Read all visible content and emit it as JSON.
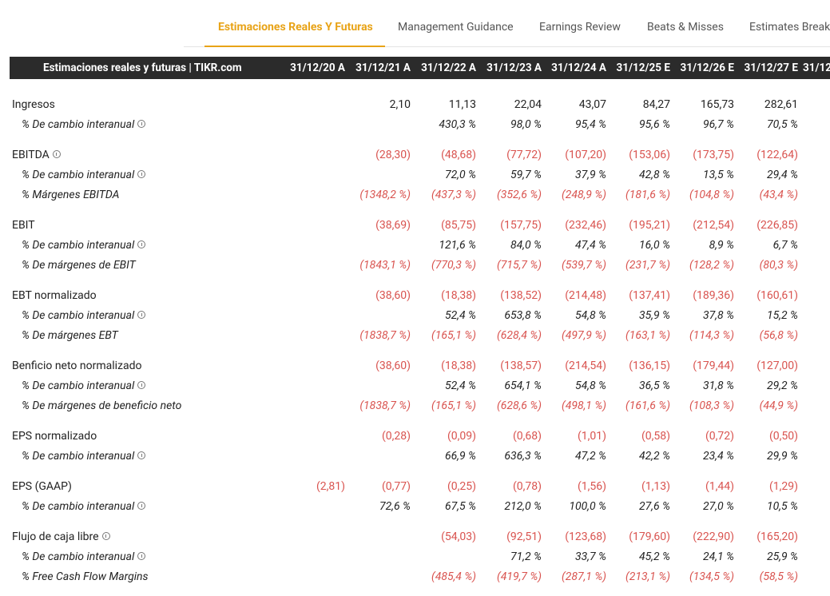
{
  "tabs": [
    "Estimaciones Reales Y Futuras",
    "Management Guidance",
    "Earnings Review",
    "Beats & Misses",
    "Estimates Break"
  ],
  "table": {
    "title": "Estimaciones reales y futuras | TIKR.com",
    "columns": [
      "31/12/20 A",
      "31/12/21 A",
      "31/12/22 A",
      "31/12/23 A",
      "31/12/24 A",
      "31/12/25 E",
      "31/12/26 E",
      "31/12/27 E",
      "31/12/"
    ],
    "groups": [
      {
        "rows": [
          {
            "label": "Ingresos",
            "cells": [
              null,
              "2,10",
              "11,13",
              "22,04",
              "43,07",
              "84,27",
              "165,73",
              "282,61"
            ]
          },
          {
            "label": "% De cambio interanual",
            "sub": true,
            "info": true,
            "cells": [
              null,
              null,
              "430,3 %",
              "98,0 %",
              "95,4 %",
              "95,6 %",
              "96,7 %",
              "70,5 %"
            ]
          }
        ]
      },
      {
        "rows": [
          {
            "label": "EBITDA",
            "info": true,
            "cells": [
              null,
              "(28,30)",
              "(48,68)",
              "(77,72)",
              "(107,20)",
              "(153,06)",
              "(173,75)",
              "(122,64)"
            ]
          },
          {
            "label": "% De cambio interanual",
            "sub": true,
            "info": true,
            "cells": [
              null,
              null,
              "72,0 %",
              "59,7 %",
              "37,9 %",
              "42,8 %",
              "13,5 %",
              "29,4 %"
            ]
          },
          {
            "label": "% Márgenes EBITDA",
            "sub": true,
            "cells": [
              null,
              "(1348,2 %)",
              "(437,3 %)",
              "(352,6 %)",
              "(248,9 %)",
              "(181,6 %)",
              "(104,8 %)",
              "(43,4 %)"
            ]
          }
        ]
      },
      {
        "rows": [
          {
            "label": "EBIT",
            "cells": [
              null,
              "(38,69)",
              "(85,75)",
              "(157,75)",
              "(232,46)",
              "(195,21)",
              "(212,54)",
              "(226,85)"
            ]
          },
          {
            "label": "% De cambio interanual",
            "sub": true,
            "info": true,
            "cells": [
              null,
              null,
              "121,6 %",
              "84,0 %",
              "47,4 %",
              "16,0 %",
              "8,9 %",
              "6,7 %"
            ]
          },
          {
            "label": "% De márgenes de EBIT",
            "sub": true,
            "cells": [
              null,
              "(1843,1 %)",
              "(770,3 %)",
              "(715,7 %)",
              "(539,7 %)",
              "(231,7 %)",
              "(128,2 %)",
              "(80,3 %)"
            ]
          }
        ]
      },
      {
        "rows": [
          {
            "label": "EBT normalizado",
            "cells": [
              null,
              "(38,60)",
              "(18,38)",
              "(138,52)",
              "(214,48)",
              "(137,41)",
              "(189,36)",
              "(160,61)"
            ]
          },
          {
            "label": "% De cambio interanual",
            "sub": true,
            "info": true,
            "cells": [
              null,
              null,
              "52,4 %",
              "653,8 %",
              "54,8 %",
              "35,9 %",
              "37,8 %",
              "15,2 %"
            ]
          },
          {
            "label": "% De márgenes EBT",
            "sub": true,
            "cells": [
              null,
              "(1838,7 %)",
              "(165,1 %)",
              "(628,4 %)",
              "(497,9 %)",
              "(163,1 %)",
              "(114,3 %)",
              "(56,8 %)"
            ]
          }
        ]
      },
      {
        "rows": [
          {
            "label": "Benficio neto normalizado",
            "cells": [
              null,
              "(38,60)",
              "(18,38)",
              "(138,57)",
              "(214,54)",
              "(136,15)",
              "(179,44)",
              "(127,00)"
            ]
          },
          {
            "label": "% De cambio interanual",
            "sub": true,
            "info": true,
            "cells": [
              null,
              null,
              "52,4 %",
              "654,1 %",
              "54,8 %",
              "36,5 %",
              "31,8 %",
              "29,2 %"
            ]
          },
          {
            "label": "% De márgenes de beneficio neto",
            "sub": true,
            "cells": [
              null,
              "(1838,7 %)",
              "(165,1 %)",
              "(628,6 %)",
              "(498,1 %)",
              "(161,6 %)",
              "(108,3 %)",
              "(44,9 %)"
            ]
          }
        ]
      },
      {
        "rows": [
          {
            "label": "EPS normalizado",
            "cells": [
              null,
              "(0,28)",
              "(0,09)",
              "(0,68)",
              "(1,01)",
              "(0,58)",
              "(0,72)",
              "(0,50)"
            ]
          },
          {
            "label": "% De cambio interanual",
            "sub": true,
            "info": true,
            "cells": [
              null,
              null,
              "66,9 %",
              "636,3 %",
              "47,2 %",
              "42,2 %",
              "23,4 %",
              "29,9 %"
            ]
          }
        ]
      },
      {
        "rows": [
          {
            "label": "EPS (GAAP)",
            "cells": [
              "(2,81)",
              "(0,77)",
              "(0,25)",
              "(0,78)",
              "(1,56)",
              "(1,13)",
              "(1,44)",
              "(1,29)"
            ]
          },
          {
            "label": "% De cambio interanual",
            "sub": true,
            "info": true,
            "cells": [
              null,
              "72,6 %",
              "67,5 %",
              "212,0 %",
              "100,0 %",
              "27,6 %",
              "27,0 %",
              "10,5 %"
            ]
          }
        ]
      },
      {
        "rows": [
          {
            "label": "Flujo de caja libre",
            "info": true,
            "cells": [
              null,
              null,
              "(54,03)",
              "(92,51)",
              "(123,68)",
              "(179,60)",
              "(222,90)",
              "(165,20)"
            ]
          },
          {
            "label": "% De cambio interanual",
            "sub": true,
            "info": true,
            "cells": [
              null,
              null,
              null,
              "71,2 %",
              "33,7 %",
              "45,2 %",
              "24,1 %",
              "25,9 %"
            ]
          },
          {
            "label": "% Free Cash Flow Margins",
            "sub": true,
            "cells": [
              null,
              null,
              "(485,4 %)",
              "(419,7 %)",
              "(287,1 %)",
              "(213,1 %)",
              "(134,5 %)",
              "(58,5 %)"
            ]
          }
        ]
      }
    ]
  }
}
